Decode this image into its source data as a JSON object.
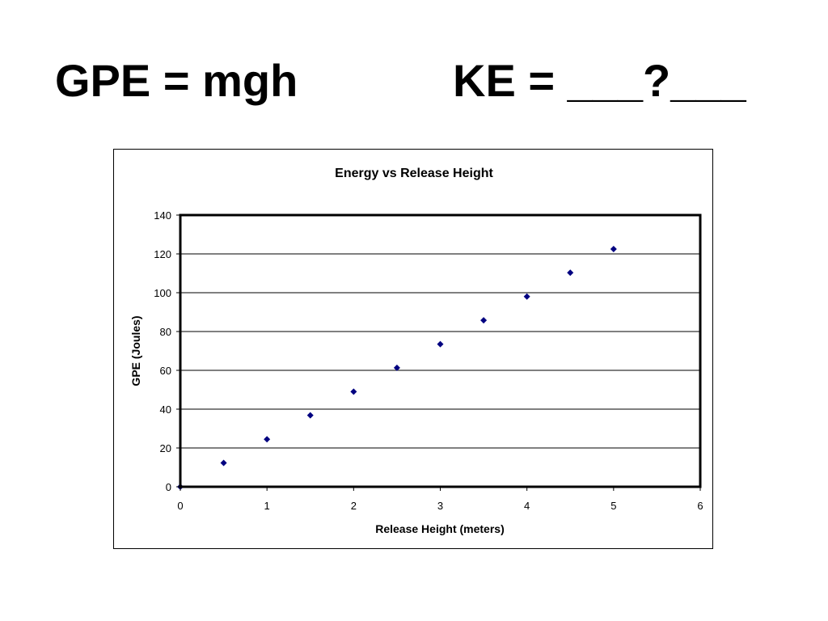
{
  "slide": {
    "heading_left": "GPE = mgh",
    "heading_right": "KE = ___?___"
  },
  "chart_data": {
    "type": "scatter",
    "title": "Energy vs Release Height",
    "xlabel": "Release Height (meters)",
    "ylabel": "GPE (Joules)",
    "xlim": [
      0,
      6
    ],
    "ylim": [
      0,
      140
    ],
    "x_ticks": [
      0,
      1,
      2,
      3,
      4,
      5,
      6
    ],
    "y_ticks": [
      0,
      20,
      40,
      60,
      80,
      100,
      120,
      140
    ],
    "grid": "horizontal",
    "legend": "none",
    "marker": "diamond",
    "colors": {
      "marker": "#000080",
      "grid": "#000000",
      "plot_border": "#000000"
    },
    "series": [
      {
        "x": [
          0,
          0.5,
          1,
          1.5,
          2,
          2.5,
          3,
          3.5,
          4,
          4.5,
          5
        ],
        "y": [
          0,
          12.3,
          24.5,
          36.8,
          49,
          61.3,
          73.5,
          85.8,
          98,
          110.3,
          122.5
        ]
      }
    ]
  }
}
